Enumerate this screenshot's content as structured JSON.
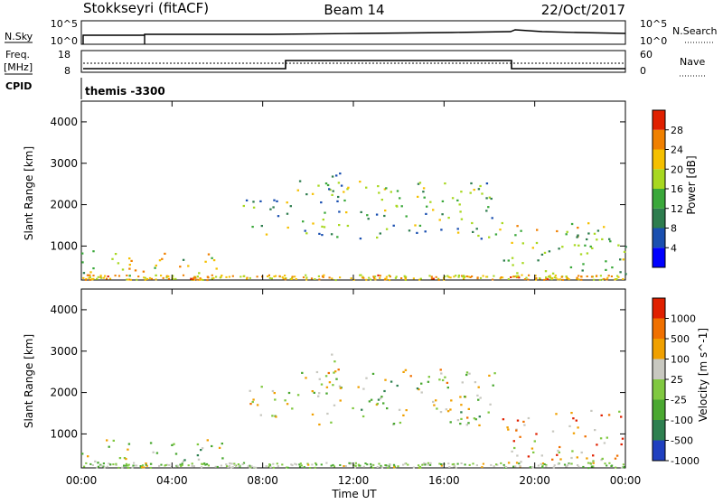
{
  "header": {
    "station": "Stokkseyri (fitACF)",
    "beam": "Beam 14",
    "date": "22/Oct/2017"
  },
  "params": {
    "nsky_label": "N.Sky",
    "nsky_ticks": [
      "10^5",
      "10^0"
    ],
    "nsearch_label": "N.Search",
    "nsearch_ticks": [
      "10^5",
      "10^0"
    ],
    "freq_label": "Freq.",
    "freq_unit": "[MHz]",
    "freq_ticks": [
      "18",
      "8"
    ],
    "nave_label": "Nave",
    "nave_ticks": [
      "60",
      "0"
    ],
    "cpid_label": "CPID",
    "cpid_value": "themis -3300"
  },
  "x_axis": {
    "label": "Time UT",
    "ticks": [
      "00:00",
      "04:00",
      "08:00",
      "12:00",
      "16:00",
      "20:00",
      "00:00"
    ]
  },
  "chart_data": [
    {
      "type": "heatmap",
      "panel": "power",
      "ylabel": "Slant Range [km]",
      "yticks": [
        1000,
        2000,
        3000,
        4000
      ],
      "ylim": [
        180,
        4500
      ],
      "xlim_hours": [
        0,
        24
      ],
      "colorbar_label": "Power [dB]",
      "colorbar_ticks": [
        "28",
        "24",
        "20",
        "16",
        "12",
        "8",
        "4"
      ],
      "colorscale": [
        "#0000ff",
        "#1a4fb0",
        "#2e7d4e",
        "#3aa83a",
        "#a8d820",
        "#f5c000",
        "#f08000",
        "#e02000"
      ],
      "regions": [
        {
          "x": [
            0,
            6.3
          ],
          "y": [
            200,
            900
          ],
          "level": 0.6
        },
        {
          "x": [
            7.0,
            9.3
          ],
          "y": [
            1300,
            2200
          ],
          "level": 0.4
        },
        {
          "x": [
            9.5,
            18.3
          ],
          "y": [
            1200,
            2600
          ],
          "level": 0.45
        },
        {
          "x": [
            10.5,
            11.5
          ],
          "y": [
            1800,
            3000
          ],
          "level": 0.35
        },
        {
          "x": [
            18.3,
            24
          ],
          "y": [
            300,
            1600
          ],
          "level": 0.55
        }
      ]
    },
    {
      "type": "heatmap",
      "panel": "velocity",
      "ylabel": "Slant Range [km]",
      "yticks": [
        1000,
        2000,
        3000,
        4000
      ],
      "ylim": [
        180,
        4500
      ],
      "xlim_hours": [
        0,
        24
      ],
      "colorbar_label": "Velocity [m s^-1]",
      "colorbar_ticks": [
        "1000",
        "500",
        "100",
        "25",
        "-25",
        "-100",
        "-500",
        "-1000"
      ],
      "colorscale": [
        "#2040c0",
        "#2e8050",
        "#4aa830",
        "#80c840",
        "#c8c8c0",
        "#f0a000",
        "#f07000",
        "#e02000"
      ],
      "regions": [
        {
          "x": [
            0,
            6.3
          ],
          "y": [
            200,
            900
          ],
          "level": 0.45
        },
        {
          "x": [
            7.0,
            9.3
          ],
          "y": [
            1300,
            2200
          ],
          "level": 0.5
        },
        {
          "x": [
            9.5,
            18.3
          ],
          "y": [
            1200,
            2600
          ],
          "level": 0.5
        },
        {
          "x": [
            10.5,
            11.5
          ],
          "y": [
            1800,
            3000
          ],
          "level": 0.5
        },
        {
          "x": [
            18.3,
            24
          ],
          "y": [
            300,
            1600
          ],
          "level": 0.7
        }
      ]
    }
  ]
}
